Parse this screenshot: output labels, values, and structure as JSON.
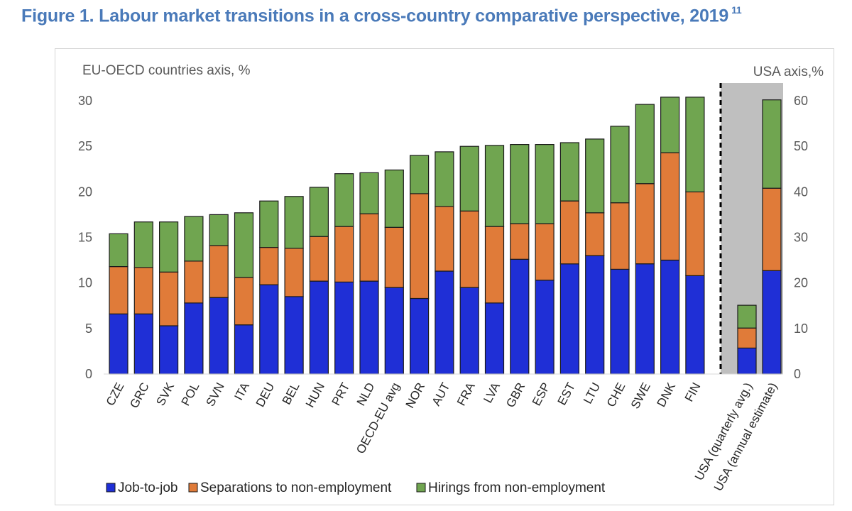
{
  "figure": {
    "title": "Figure 1. Labour market transitions in a cross-country comparative perspective, 2019",
    "footnote": "11"
  },
  "colors": {
    "job_to_job": "#1f2fd6",
    "separations": "#e07b39",
    "hirings": "#70a550",
    "usa_panel": "#bfbfbf"
  },
  "chart_data": {
    "type": "bar",
    "stacked": true,
    "left_axis_label": "EU-OECD countries axis, %",
    "right_axis_label": "USA axis,%",
    "left_ylim": [
      0,
      30
    ],
    "left_ticks": [
      "0",
      "5",
      "10",
      "15",
      "20",
      "25",
      "30"
    ],
    "right_ylim": [
      0,
      60
    ],
    "right_ticks": [
      "0",
      "10",
      "20",
      "30",
      "40",
      "50",
      "60"
    ],
    "categories": [
      "CZE",
      "GRC",
      "SVK",
      "POL",
      "SVN",
      "ITA",
      "DEU",
      "BEL",
      "HUN",
      "PRT",
      "NLD",
      "OECD-EU avg",
      "NOR",
      "AUT",
      "FRA",
      "LVA",
      "GBR",
      "ESP",
      "EST",
      "LTU",
      "CHE",
      "SWE",
      "DNK",
      "FIN"
    ],
    "series": [
      {
        "name": "Job-to-job",
        "values": [
          6.6,
          6.6,
          5.3,
          7.8,
          8.4,
          5.4,
          9.8,
          8.5,
          10.2,
          10.1,
          10.2,
          9.5,
          8.3,
          11.3,
          9.5,
          7.8,
          12.6,
          10.3,
          12.1,
          13.0,
          11.5,
          12.1,
          12.5,
          10.8
        ]
      },
      {
        "name": "Separations to non-employment",
        "values": [
          5.2,
          5.1,
          5.9,
          4.6,
          5.7,
          5.2,
          4.1,
          5.3,
          4.9,
          6.1,
          7.4,
          6.6,
          11.5,
          7.1,
          8.4,
          8.4,
          3.9,
          6.2,
          6.9,
          4.7,
          7.3,
          8.8,
          11.8,
          9.2
        ]
      },
      {
        "name": "Hirings from non-employment",
        "values": [
          3.6,
          5.0,
          5.5,
          4.9,
          3.4,
          7.1,
          5.1,
          5.7,
          5.4,
          5.8,
          4.5,
          6.3,
          4.2,
          6.0,
          7.1,
          8.9,
          8.7,
          8.7,
          6.4,
          8.1,
          8.4,
          8.7,
          6.1,
          10.4
        ]
      }
    ],
    "usa_categories": [
      "USA (quarterly avg.)",
      "USA (annual estimate)"
    ],
    "usa_series": [
      {
        "name": "Job-to-job",
        "values": [
          5.7,
          22.7
        ]
      },
      {
        "name": "Separations to non-employment",
        "values": [
          4.4,
          18.1
        ]
      },
      {
        "name": "Hirings from non-employment",
        "values": [
          5.0,
          19.4
        ]
      }
    ],
    "legend_position": "bottom"
  }
}
